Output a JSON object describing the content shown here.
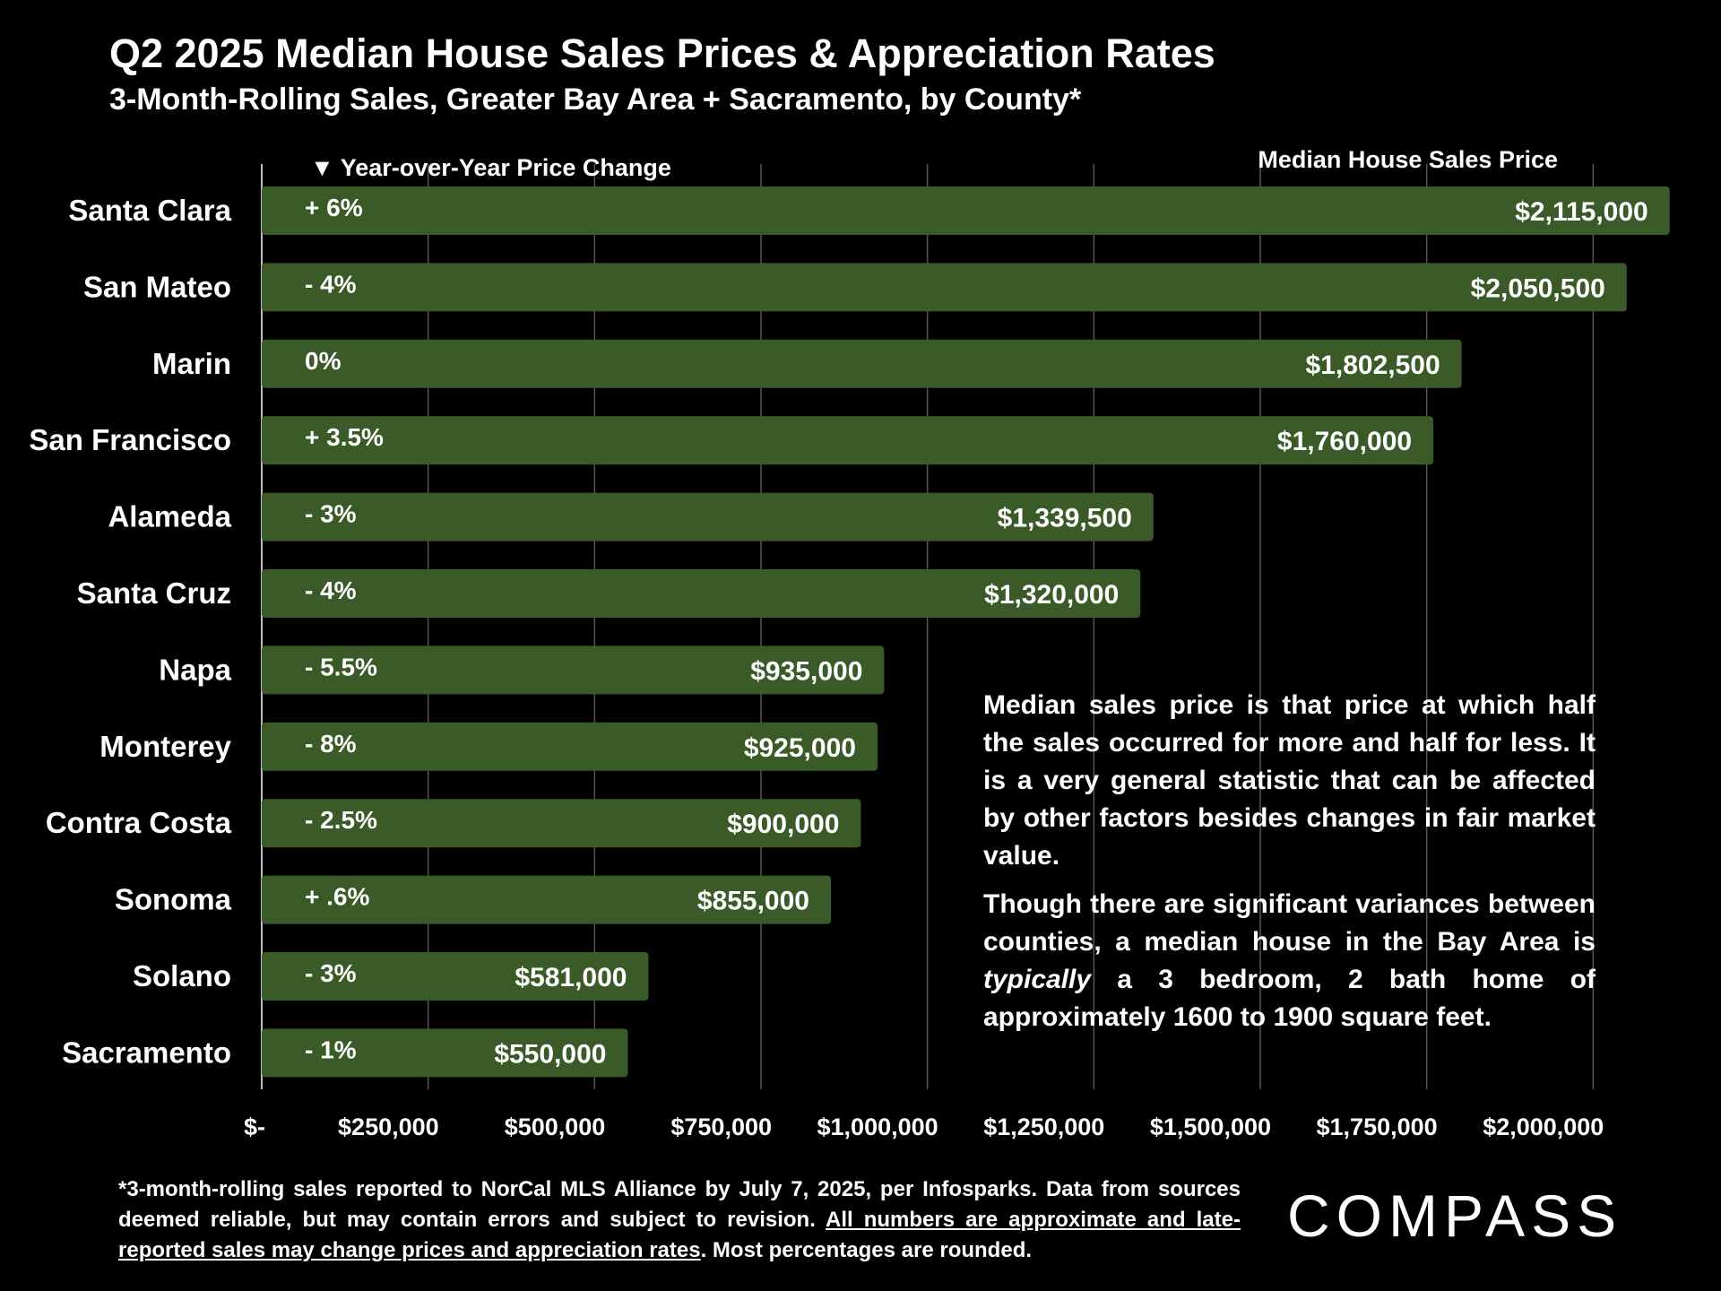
{
  "title": "Q2 2025 Median House Sales Prices & Appreciation Rates",
  "subtitle": "3-Month-Rolling Sales, Greater Bay Area + Sacramento, by County*",
  "chart_data": {
    "type": "bar",
    "orientation": "horizontal",
    "yoy_header": "▼ Year-over-Year Price Change",
    "price_header": "Median House Sales Price",
    "categories": [
      "Santa Clara",
      "San Mateo",
      "Marin",
      "San Francisco",
      "Alameda",
      "Santa Cruz",
      "Napa",
      "Monterey",
      "Contra Costa",
      "Sonoma",
      "Solano",
      "Sacramento"
    ],
    "values": [
      2115000,
      2050500,
      1802500,
      1760000,
      1339500,
      1320000,
      935000,
      925000,
      900000,
      855000,
      581000,
      550000
    ],
    "value_labels": [
      "$2,115,000",
      "$2,050,500",
      "$1,802,500",
      "$1,760,000",
      "$1,339,500",
      "$1,320,000",
      "$935,000",
      "$925,000",
      "$900,000",
      "$855,000",
      "$581,000",
      "$550,000"
    ],
    "yoy_labels": [
      "+ 6%",
      "- 4%",
      "0%",
      "+ 3.5%",
      "- 3%",
      "- 4%",
      "- 5.5%",
      "- 8%",
      "- 2.5%",
      "+ .6%",
      "- 3%",
      "- 1%"
    ],
    "xlim": [
      0,
      2250000
    ],
    "x_ticks": [
      0,
      250000,
      500000,
      750000,
      1000000,
      1250000,
      1500000,
      1750000,
      2000000
    ],
    "x_tick_labels": [
      "$-",
      "$250,000",
      "$500,000",
      "$750,000",
      "$1,000,000",
      "$1,250,000",
      "$1,500,000",
      "$1,750,000",
      "$2,000,000"
    ],
    "grid": "vertical",
    "bar_color": "#3a5a28",
    "grid_color": "#555555"
  },
  "note": {
    "p1": "Median sales price is that price at which half the sales occurred for more and half for less. It is a very general statistic that can be affected by other factors besides changes in fair market value.",
    "p2_before": "Though there are significant variances between counties, a median house in the Bay Area is ",
    "p2_italic": "typically",
    "p2_after": " a 3 bedroom, 2 bath home of approximately 1600 to 1900 square feet."
  },
  "footnote": {
    "part1": "*3-month-rolling sales reported to NorCal MLS Alliance by July 7, 2025, per Infosparks. Data from sources deemed reliable, but may contain errors and subject to revision. ",
    "underlined": "All numbers are approximate and late-reported sales may change prices and appreciation rates",
    "part2": ". Most percentages are rounded."
  },
  "logo": {
    "text": "COMPASS"
  }
}
